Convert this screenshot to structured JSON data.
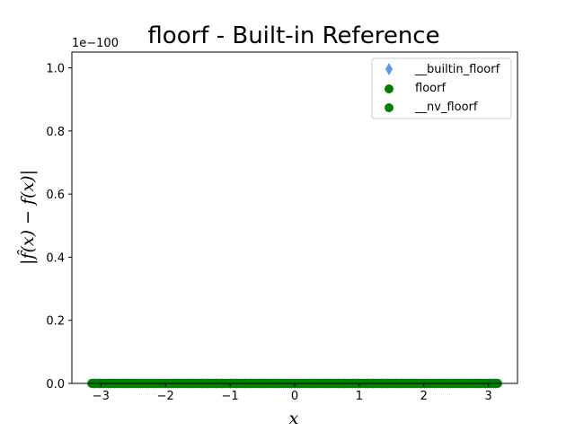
{
  "chart_data": {
    "type": "scatter",
    "title": "floorf - Built-in Reference",
    "xlabel": "x",
    "ylabel": "|f̂(x) − f(x)|",
    "y_offset_label": "1e−100",
    "xlim": [
      -3.45,
      3.45
    ],
    "ylim": [
      0,
      1.05
    ],
    "x_ticks": [
      -3,
      -2,
      -1,
      0,
      1,
      2,
      3
    ],
    "x_tick_labels": [
      "−3",
      "−2",
      "−1",
      "0",
      "1",
      "2",
      "3"
    ],
    "y_ticks": [
      0.0,
      0.2,
      0.4,
      0.6,
      0.8,
      1.0
    ],
    "y_tick_labels": [
      "0.0",
      "0.2",
      "0.4",
      "0.6",
      "0.8",
      "1.0"
    ],
    "x_range": [
      -3.14159,
      3.14159
    ],
    "grid": false,
    "legend_position": "top-right",
    "series": [
      {
        "name": "__builtin_floorf",
        "marker": "diamond",
        "color": "#6495ED",
        "y_value": 0
      },
      {
        "name": "floorf",
        "marker": "circle",
        "color": "#008000",
        "y_value": 0
      },
      {
        "name": "__nv_floorf",
        "marker": "circle",
        "color": "#008000",
        "y_value": 0
      }
    ]
  }
}
